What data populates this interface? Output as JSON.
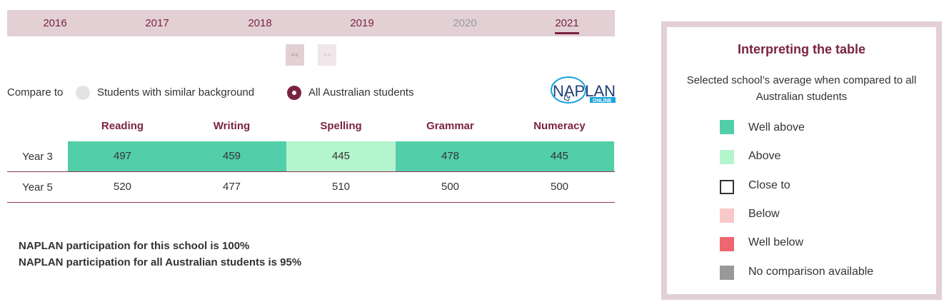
{
  "years": {
    "tabs": [
      {
        "label": "2016",
        "state": "enabled"
      },
      {
        "label": "2017",
        "state": "enabled"
      },
      {
        "label": "2018",
        "state": "enabled"
      },
      {
        "label": "2019",
        "state": "enabled"
      },
      {
        "label": "2020",
        "state": "disabled"
      },
      {
        "label": "2021",
        "state": "active"
      }
    ],
    "prev_label": "<<",
    "next_label": ">>"
  },
  "compare": {
    "label": "Compare to",
    "options": [
      {
        "label": "Students with similar background",
        "selected": false
      },
      {
        "label": "All Australian students",
        "selected": true
      }
    ]
  },
  "logo": {
    "name": "naplan-online-logo",
    "text_main": "NAPLAN",
    "text_sub": "ONLINE"
  },
  "table": {
    "columns": [
      "Reading",
      "Writing",
      "Spelling",
      "Grammar",
      "Numeracy"
    ],
    "rows": [
      {
        "label": "Year 3",
        "values": [
          "497",
          "459",
          "445",
          "478",
          "445"
        ],
        "bands": [
          "well-above",
          "well-above",
          "above",
          "well-above",
          "well-above"
        ]
      },
      {
        "label": "Year 5",
        "values": [
          "520",
          "477",
          "510",
          "500",
          "500"
        ],
        "bands": [
          "close-to",
          "close-to",
          "close-to",
          "close-to",
          "close-to"
        ]
      }
    ]
  },
  "participation": {
    "school": "NAPLAN participation for this school is 100%",
    "all": "NAPLAN participation for all Australian students is 95%"
  },
  "legend": {
    "title": "Interpreting the table",
    "description": "Selected school’s average when compared to all Australian students",
    "items": [
      {
        "label": "Well above",
        "band": "well-above",
        "color": "#52cea9"
      },
      {
        "label": "Above",
        "band": "above",
        "color": "#b4f5cd"
      },
      {
        "label": "Close to",
        "band": "close-to",
        "color": "#ffffff"
      },
      {
        "label": "Below",
        "band": "below",
        "color": "#f9c8c8"
      },
      {
        "label": "Well below",
        "band": "well-below",
        "color": "#ef6670"
      },
      {
        "label": "No comparison available",
        "band": "none",
        "color": "#999999"
      }
    ]
  },
  "colors": {
    "accent": "#7a2440",
    "tab_bar": "#e2d0d5"
  }
}
